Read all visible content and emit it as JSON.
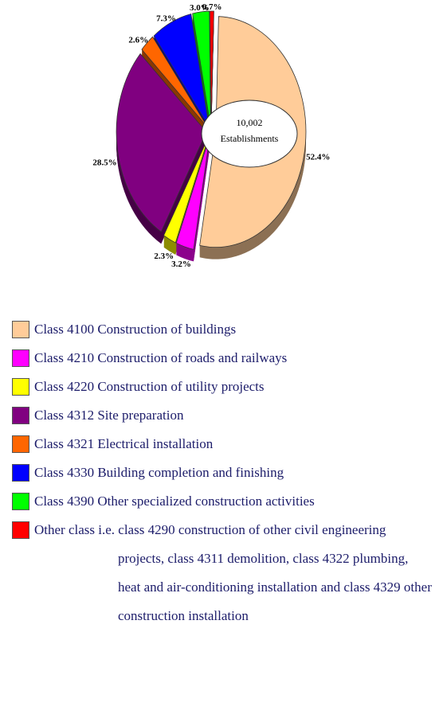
{
  "chart_data": {
    "type": "pie",
    "annotations": [
      "10,002",
      "Establishments"
    ],
    "categories": [
      "Class 4100 Construction of buildings",
      "Class 4210 Construction of roads and railways",
      "Class 4220 Construction of utility projects",
      "Class 4312 Site preparation",
      "Class 4321 Electrical installation",
      "Class 4330 Building completion and finishing",
      "Class 4390 Other specialized construction activities",
      "Other class i.e. class 4290 construction of other civil engineering projects, class 4311 demolition, class 4322 plumbing, heat and air-conditioning installation and class 4329 other construction installation"
    ],
    "values": [
      52.4,
      3.2,
      2.3,
      28.5,
      2.6,
      7.3,
      3.0,
      0.7
    ],
    "value_labels": [
      "52.4%",
      "3.2%",
      "2.3%",
      "28.5%",
      "2.6%",
      "7.3%",
      "3.0%",
      "0.7%"
    ],
    "colors": [
      "#ffcc99",
      "#ff00ff",
      "#ffff00",
      "#800080",
      "#ff6600",
      "#0000ff",
      "#00ff00",
      "#ff0000"
    ],
    "legend": "bottom"
  }
}
